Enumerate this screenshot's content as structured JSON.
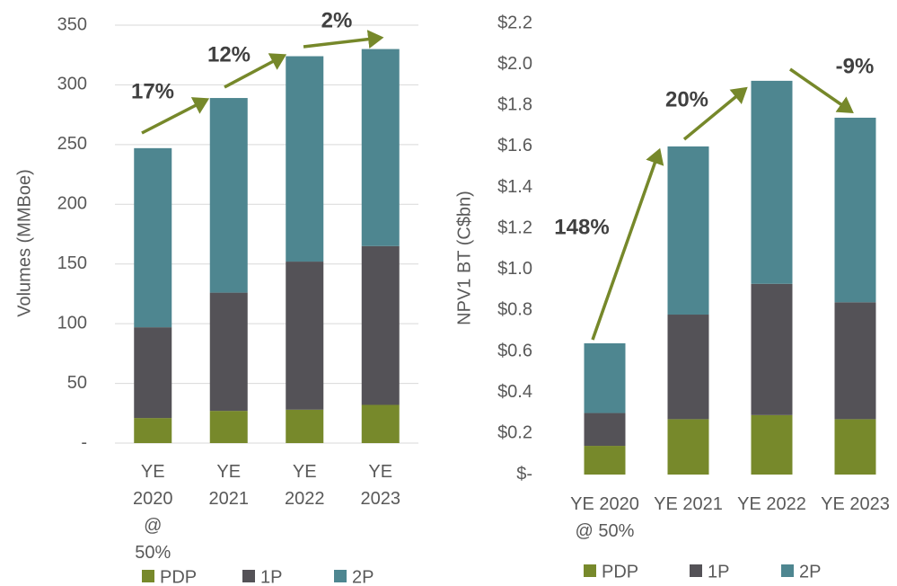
{
  "chart_data": [
    {
      "type": "bar",
      "stacked": true,
      "ylabel": "Volumes (MMBoe)",
      "categories": [
        "YE 2020 @ 50%",
        "YE 2021",
        "YE 2022",
        "YE 2023"
      ],
      "series": [
        {
          "name": "PDP",
          "color": "#77892b",
          "values": [
            21,
            27,
            28,
            32
          ]
        },
        {
          "name": "1P",
          "color": "#545257",
          "values": [
            76,
            99,
            124,
            133
          ]
        },
        {
          "name": "2P",
          "color": "#4e8690",
          "values": [
            150,
            163,
            172,
            165
          ]
        }
      ],
      "ylim": [
        0,
        350
      ],
      "yticks": [
        {
          "value": 0,
          "label": "-"
        },
        50,
        100,
        150,
        200,
        250,
        300,
        350
      ],
      "grid": true,
      "legend": "bottom",
      "annotations": [
        {
          "text": "17%"
        },
        {
          "text": "12%"
        },
        {
          "text": "2%"
        }
      ]
    },
    {
      "type": "bar",
      "stacked": true,
      "ylabel": "NPV1 BT (C$bn)",
      "categories": [
        "YE 2020 @ 50%",
        "YE 2021",
        "YE 2022",
        "YE 2023"
      ],
      "series": [
        {
          "name": "PDP",
          "color": "#77892b",
          "values": [
            0.14,
            0.27,
            0.29,
            0.27
          ]
        },
        {
          "name": "1P",
          "color": "#545257",
          "values": [
            0.16,
            0.51,
            0.64,
            0.57
          ]
        },
        {
          "name": "2P",
          "color": "#4e8690",
          "values": [
            0.34,
            0.82,
            0.99,
            0.9
          ]
        }
      ],
      "ylim": [
        0,
        2.2
      ],
      "yticks": [
        {
          "value": 0,
          "label": "$-"
        },
        {
          "value": 0.2,
          "label": "$0.2"
        },
        {
          "value": 0.4,
          "label": "$0.4"
        },
        {
          "value": 0.6,
          "label": "$0.6"
        },
        {
          "value": 0.8,
          "label": "$0.8"
        },
        {
          "value": 1.0,
          "label": "$1.0"
        },
        {
          "value": 1.2,
          "label": "$1.2"
        },
        {
          "value": 1.4,
          "label": "$1.4"
        },
        {
          "value": 1.6,
          "label": "$1.6"
        },
        {
          "value": 1.8,
          "label": "$1.8"
        },
        {
          "value": 2.0,
          "label": "$2.0"
        },
        {
          "value": 2.2,
          "label": "$2.2"
        }
      ],
      "grid": false,
      "legend": "bottom",
      "annotations": [
        {
          "text": "148%"
        },
        {
          "text": "20%"
        },
        {
          "text": "-9%"
        }
      ]
    }
  ]
}
